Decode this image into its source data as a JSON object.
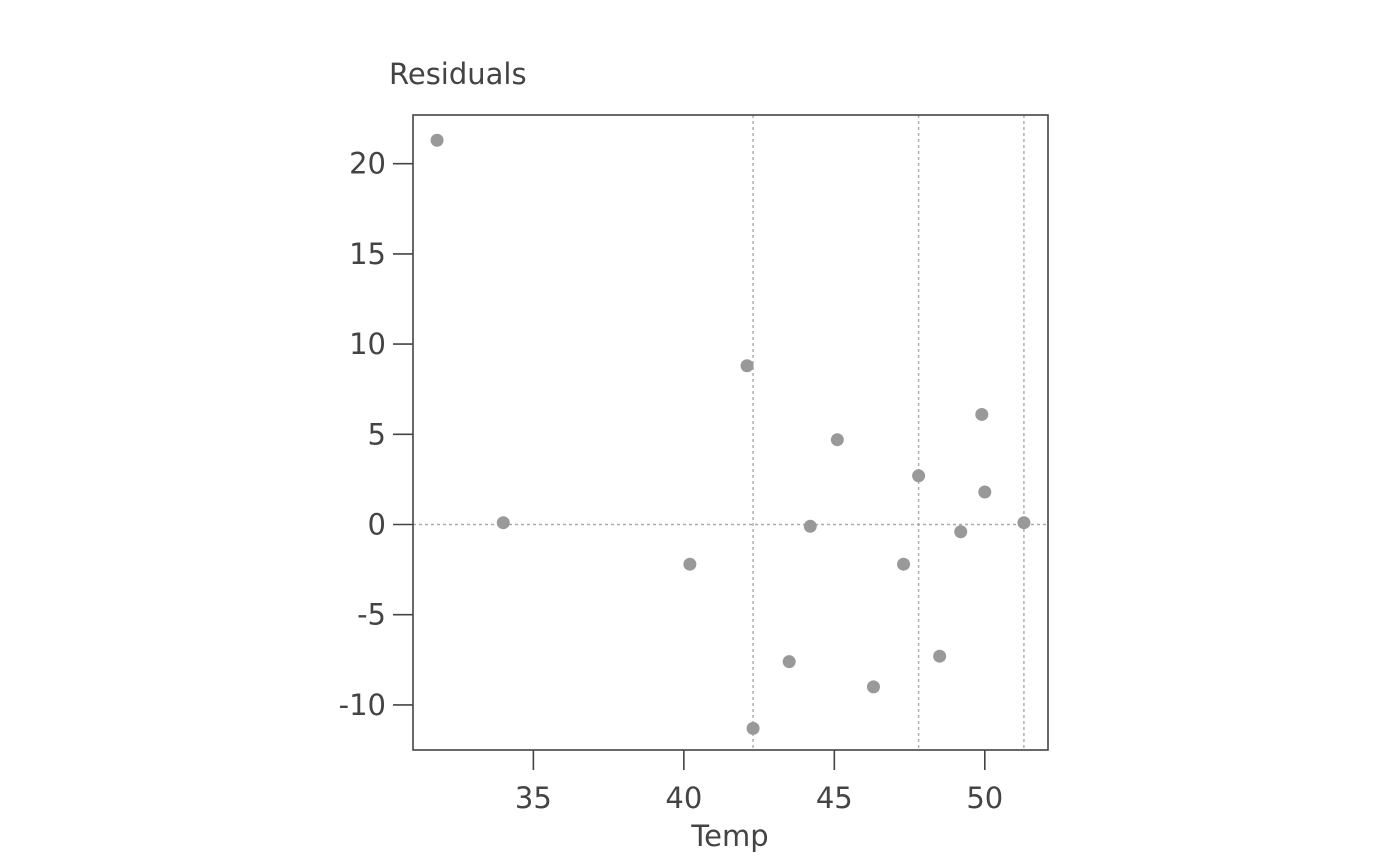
{
  "chart_data": {
    "type": "scatter",
    "ylabel": "Residuals",
    "xlabel": "Temp",
    "xlim": [
      31,
      52.1
    ],
    "ylim": [
      -12.5,
      22.7
    ],
    "x_ticks": [
      35,
      40,
      45,
      50
    ],
    "y_ticks": [
      -10,
      -5,
      0,
      5,
      10,
      15,
      20
    ],
    "x_tick_labels": [
      "35",
      "40",
      "45",
      "50"
    ],
    "y_tick_labels": [
      "-10",
      "-5",
      "0",
      "5",
      "10",
      "15",
      "20"
    ],
    "grid": false,
    "reference_lines": {
      "horizontal": [
        0
      ],
      "vertical": [
        42.3,
        47.8,
        51.3
      ]
    },
    "point_color": "#999999",
    "points": [
      {
        "x": 31.8,
        "y": 21.3
      },
      {
        "x": 34.0,
        "y": 0.1
      },
      {
        "x": 40.2,
        "y": -2.2
      },
      {
        "x": 42.1,
        "y": 8.8
      },
      {
        "x": 42.3,
        "y": -11.3
      },
      {
        "x": 43.5,
        "y": -7.6
      },
      {
        "x": 44.2,
        "y": -0.1
      },
      {
        "x": 45.1,
        "y": 4.7
      },
      {
        "x": 46.3,
        "y": -9.0
      },
      {
        "x": 47.3,
        "y": -2.2
      },
      {
        "x": 47.8,
        "y": 2.7
      },
      {
        "x": 48.5,
        "y": -7.3
      },
      {
        "x": 49.2,
        "y": -0.4
      },
      {
        "x": 49.9,
        "y": 6.1
      },
      {
        "x": 50.0,
        "y": 1.8
      },
      {
        "x": 51.3,
        "y": 0.1
      }
    ]
  }
}
